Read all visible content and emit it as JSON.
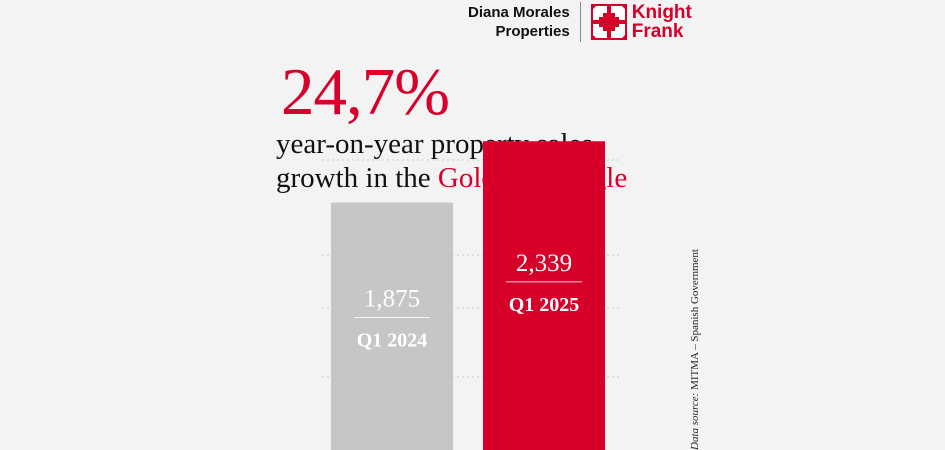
{
  "brand": {
    "partner_line1": "Diana Morales",
    "partner_line2": "Properties",
    "logo_line1": "Knight",
    "logo_line2": "Frank",
    "accent_color": "#d6002b"
  },
  "headline": {
    "number": "24,7%",
    "line1": "year-on-year property sales",
    "line2_prefix": "growth in the",
    "line2_highlight": "Golden Triangle"
  },
  "source": {
    "label": "Data source:",
    "text": "MITMA – Spanish Government"
  },
  "chart_data": {
    "type": "bar",
    "categories": [
      "Q1 2024",
      "Q1 2025"
    ],
    "values": [
      1875,
      2339
    ],
    "value_labels": [
      "1,875",
      "2,339"
    ],
    "colors": [
      "#c6c6c6",
      "#d6002b"
    ],
    "ylim": [
      0,
      2500
    ],
    "grid": true,
    "title": "",
    "xlabel": "",
    "ylabel": ""
  }
}
